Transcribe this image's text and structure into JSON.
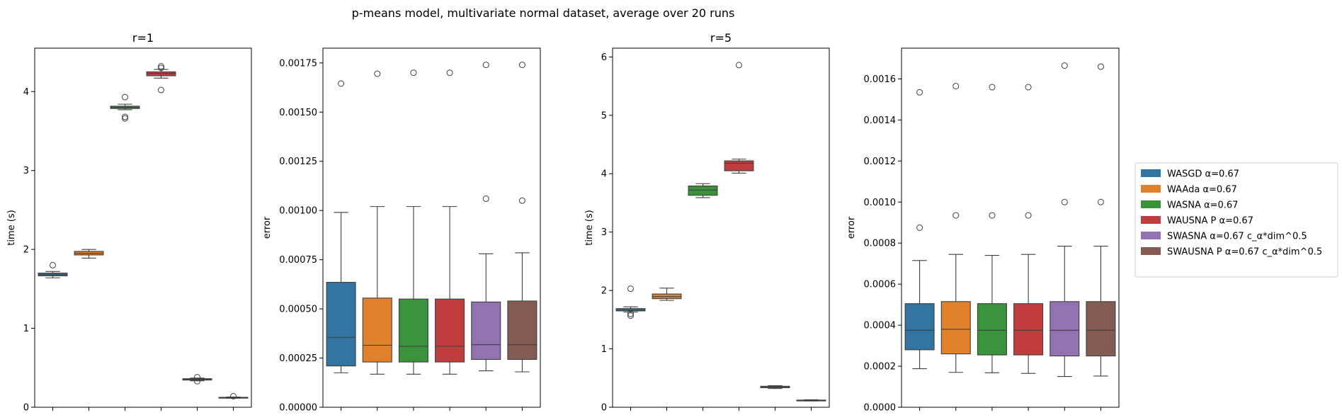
{
  "figure": {
    "suptitle": "p-means model, multivariate normal dataset, average over 20 runs"
  },
  "legend": {
    "placement": "center-right",
    "entries": [
      {
        "label": "WASGD α=0.67",
        "color": "#3274a1"
      },
      {
        "label": "WAAda α=0.67",
        "color": "#e1812c"
      },
      {
        "label": "WASNA α=0.67",
        "color": "#3a923a"
      },
      {
        "label": "WAUSNA P α=0.67",
        "color": "#c03d3e"
      },
      {
        "label": "SWASNA α=0.67 c_α*dim^0.5",
        "color": "#9372b2"
      },
      {
        "label": "SWAUSNA P α=0.67 c_α*dim^0.5",
        "color": "#845b53"
      }
    ]
  },
  "chart_data": [
    {
      "type": "box",
      "title": "r=1",
      "xlabel": "",
      "ylabel": "time (s)",
      "ylim": [
        0,
        4.55
      ],
      "yticks": [
        0,
        1,
        2,
        3,
        4
      ],
      "ytick_labels": [
        "0",
        "1",
        "2",
        "3",
        "4"
      ],
      "series": [
        {
          "q1": 1.665,
          "median": 1.68,
          "q3": 1.7,
          "whislo": 1.64,
          "whishi": 1.72,
          "fliers": [
            1.8
          ]
        },
        {
          "q1": 1.93,
          "median": 1.95,
          "q3": 1.975,
          "whislo": 1.89,
          "whishi": 2.0,
          "fliers": []
        },
        {
          "q1": 3.785,
          "median": 3.8,
          "q3": 3.815,
          "whislo": 3.77,
          "whishi": 3.84,
          "fliers": [
            3.93,
            3.68,
            3.66
          ]
        },
        {
          "q1": 4.2,
          "median": 4.23,
          "q3": 4.25,
          "whislo": 4.17,
          "whishi": 4.28,
          "fliers": [
            4.3,
            4.32,
            4.02
          ]
        },
        {
          "q1": 0.345,
          "median": 0.355,
          "q3": 0.362,
          "whislo": 0.335,
          "whishi": 0.37,
          "fliers": [
            0.33,
            0.38
          ]
        },
        {
          "q1": 0.118,
          "median": 0.122,
          "q3": 0.126,
          "whislo": 0.115,
          "whishi": 0.13,
          "fliers": [
            0.14
          ]
        }
      ]
    },
    {
      "type": "box",
      "title": "",
      "xlabel": "",
      "ylabel": "error",
      "ylim": [
        0,
        0.001825
      ],
      "yticks": [
        0,
        0.00025,
        0.0005,
        0.00075,
        0.001,
        0.00125,
        0.0015,
        0.00175
      ],
      "ytick_labels": [
        "0.00000",
        "0.00025",
        "0.00050",
        "0.00075",
        "0.00100",
        "0.00125",
        "0.00150",
        "0.00175"
      ],
      "series": [
        {
          "q1": 0.00021,
          "median": 0.000355,
          "q3": 0.000635,
          "whislo": 0.000175,
          "whishi": 0.00099,
          "fliers": [
            0.001645
          ]
        },
        {
          "q1": 0.00023,
          "median": 0.000315,
          "q3": 0.000555,
          "whislo": 0.000168,
          "whishi": 0.00102,
          "fliers": [
            0.001695
          ]
        },
        {
          "q1": 0.00023,
          "median": 0.00031,
          "q3": 0.00055,
          "whislo": 0.000168,
          "whishi": 0.00102,
          "fliers": [
            0.0017
          ]
        },
        {
          "q1": 0.00023,
          "median": 0.00031,
          "q3": 0.00055,
          "whislo": 0.000168,
          "whishi": 0.00102,
          "fliers": [
            0.0017
          ]
        },
        {
          "q1": 0.000243,
          "median": 0.000318,
          "q3": 0.000535,
          "whislo": 0.000185,
          "whishi": 0.00078,
          "fliers": [
            0.00106,
            0.00174
          ]
        },
        {
          "q1": 0.000243,
          "median": 0.000318,
          "q3": 0.00054,
          "whislo": 0.00018,
          "whishi": 0.000785,
          "fliers": [
            0.00105,
            0.00174
          ]
        }
      ]
    },
    {
      "type": "box",
      "title": "r=5",
      "xlabel": "",
      "ylabel": "time (s)",
      "ylim": [
        0,
        6.15
      ],
      "yticks": [
        0,
        1,
        2,
        3,
        4,
        5,
        6
      ],
      "ytick_labels": [
        "0",
        "1",
        "2",
        "3",
        "4",
        "5",
        "6"
      ],
      "series": [
        {
          "q1": 1.65,
          "median": 1.665,
          "q3": 1.69,
          "whislo": 1.63,
          "whishi": 1.72,
          "fliers": [
            2.03,
            1.6,
            1.57
          ]
        },
        {
          "q1": 1.86,
          "median": 1.895,
          "q3": 1.94,
          "whislo": 1.83,
          "whishi": 2.04,
          "fliers": []
        },
        {
          "q1": 3.63,
          "median": 3.72,
          "q3": 3.79,
          "whislo": 3.59,
          "whishi": 3.83,
          "fliers": []
        },
        {
          "q1": 4.05,
          "median": 4.18,
          "q3": 4.22,
          "whislo": 4.01,
          "whishi": 4.25,
          "fliers": [
            5.86
          ]
        },
        {
          "q1": 0.335,
          "median": 0.345,
          "q3": 0.36,
          "whislo": 0.32,
          "whishi": 0.37,
          "fliers": []
        },
        {
          "q1": 0.112,
          "median": 0.118,
          "q3": 0.123,
          "whislo": 0.108,
          "whishi": 0.128,
          "fliers": []
        }
      ]
    },
    {
      "type": "box",
      "title": "",
      "xlabel": "",
      "ylabel": "error",
      "ylim": [
        0,
        0.00175
      ],
      "yticks": [
        0,
        0.0002,
        0.0004,
        0.0006,
        0.0008,
        0.001,
        0.0012,
        0.0014,
        0.0016
      ],
      "ytick_labels": [
        "0.0000",
        "0.0002",
        "0.0004",
        "0.0006",
        "0.0008",
        "0.0010",
        "0.0012",
        "0.0014",
        "0.0016"
      ],
      "series": [
        {
          "q1": 0.00028,
          "median": 0.000375,
          "q3": 0.000505,
          "whislo": 0.000188,
          "whishi": 0.000715,
          "fliers": [
            0.000875,
            0.001535
          ]
        },
        {
          "q1": 0.00026,
          "median": 0.00038,
          "q3": 0.000515,
          "whislo": 0.00017,
          "whishi": 0.000745,
          "fliers": [
            0.000935,
            0.001565
          ]
        },
        {
          "q1": 0.000255,
          "median": 0.000375,
          "q3": 0.000505,
          "whislo": 0.000168,
          "whishi": 0.00074,
          "fliers": [
            0.000935,
            0.00156
          ]
        },
        {
          "q1": 0.000255,
          "median": 0.000375,
          "q3": 0.000505,
          "whislo": 0.000165,
          "whishi": 0.000745,
          "fliers": [
            0.000935,
            0.00156
          ]
        },
        {
          "q1": 0.00025,
          "median": 0.000375,
          "q3": 0.000515,
          "whislo": 0.00015,
          "whishi": 0.000785,
          "fliers": [
            0.001,
            0.001665
          ]
        },
        {
          "q1": 0.00025,
          "median": 0.000375,
          "q3": 0.000515,
          "whislo": 0.000152,
          "whishi": 0.000785,
          "fliers": [
            0.001,
            0.00166
          ]
        }
      ]
    }
  ]
}
